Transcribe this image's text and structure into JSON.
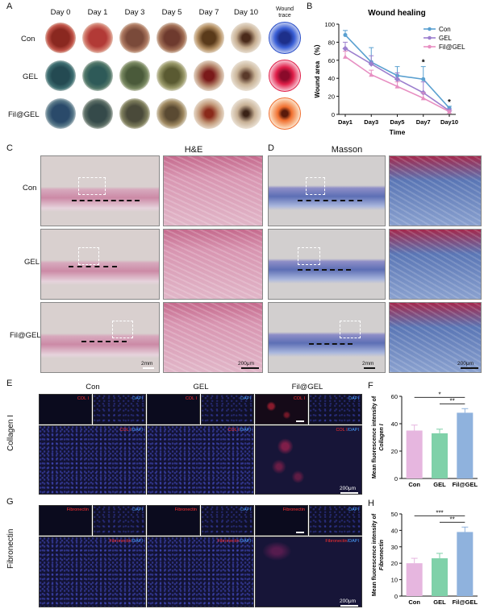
{
  "panelA": {
    "label": "A",
    "days": [
      "Day 0",
      "Day 1",
      "Day 3",
      "Day 5",
      "Day 7",
      "Day 10"
    ],
    "trace_header": [
      "Wound",
      "trace"
    ],
    "rows": [
      "Con",
      "GEL",
      "Fil@GEL"
    ],
    "trace_colors": [
      "#2a4fc9",
      "#e0204a",
      "#f07030"
    ]
  },
  "panelB": {
    "label": "B",
    "chart_data": {
      "type": "line",
      "title": "Wound healing",
      "xlabel": "Time",
      "ylabel": "Wound area （%）",
      "categories": [
        "Day1",
        "Day3",
        "Day5",
        "Day7",
        "Day10"
      ],
      "ylim": [
        0,
        100
      ],
      "yticks": [
        0,
        20,
        40,
        60,
        80,
        100
      ],
      "series": [
        {
          "name": "Con",
          "color": "#5aa0d0",
          "values": [
            88,
            58,
            43,
            39,
            7
          ],
          "err": [
            5,
            16,
            10,
            14,
            2
          ]
        },
        {
          "name": "GEL",
          "color": "#9c7fce",
          "values": [
            73,
            56,
            39,
            24,
            4
          ],
          "err": [
            7,
            9,
            7,
            12,
            2
          ]
        },
        {
          "name": "Fil@GEL",
          "color": "#e78fc2",
          "values": [
            64,
            44,
            31,
            18,
            3
          ],
          "err": [
            6,
            5,
            5,
            6,
            1
          ]
        }
      ],
      "annotations": [
        {
          "x": "Day7",
          "text": "*"
        },
        {
          "x": "Day10",
          "text": "*"
        }
      ],
      "legend": "top-right"
    }
  },
  "panelC": {
    "label": "C",
    "title": "H&E",
    "rows": [
      "Con",
      "GEL",
      "Fil@GEL"
    ],
    "scale_low": "2mm",
    "scale_high": "200μm"
  },
  "panelD": {
    "label": "D",
    "title": "Masson",
    "scale_low": "2mm",
    "scale_high": "200μm"
  },
  "panelE": {
    "label": "E",
    "groups": [
      "Con",
      "GEL",
      "Fil@GEL"
    ],
    "side_label": "Collagen I",
    "tag_red": "COL I",
    "tag_blue": "DAPI",
    "tag_merge_red": "COL I",
    "tag_merge_blue": "/DAPI",
    "scale": "200μm"
  },
  "panelF": {
    "label": "F",
    "chart_data": {
      "type": "bar",
      "categories": [
        "Con",
        "GEL",
        "Fil@GEL"
      ],
      "values": [
        35,
        33,
        48
      ],
      "err": [
        4,
        3,
        3
      ],
      "colors": [
        "#e6b6df",
        "#7fd1a9",
        "#8fb2dd"
      ],
      "ylabel": "Mean fluorescence intensity of Collagen I",
      "ylim": [
        0,
        60
      ],
      "yticks": [
        0,
        20,
        40,
        60
      ],
      "significance": [
        {
          "from": "Con",
          "to": "Fil@GEL",
          "text": "*"
        },
        {
          "from": "GEL",
          "to": "Fil@GEL",
          "text": "**"
        }
      ]
    }
  },
  "panelG": {
    "label": "G",
    "side_label": "Fibronectin",
    "tag_red": "Fibronectin",
    "tag_blue": "DAPI",
    "tag_merge_red": "Fibronectin",
    "tag_merge_blue": "/DAPI",
    "scale": "200μm"
  },
  "panelH": {
    "label": "H",
    "chart_data": {
      "type": "bar",
      "categories": [
        "Con",
        "GEL",
        "Fil@GEL"
      ],
      "values": [
        20,
        23,
        39
      ],
      "err": [
        3,
        3,
        3
      ],
      "colors": [
        "#e6b6df",
        "#7fd1a9",
        "#8fb2dd"
      ],
      "ylabel": "Mean fluorescence intensity of Fibronectin",
      "ylim": [
        0,
        50
      ],
      "yticks": [
        0,
        10,
        20,
        30,
        40,
        50
      ],
      "significance": [
        {
          "from": "Con",
          "to": "Fil@GEL",
          "text": "***"
        },
        {
          "from": "GEL",
          "to": "Fil@GEL",
          "text": "**"
        }
      ]
    }
  }
}
